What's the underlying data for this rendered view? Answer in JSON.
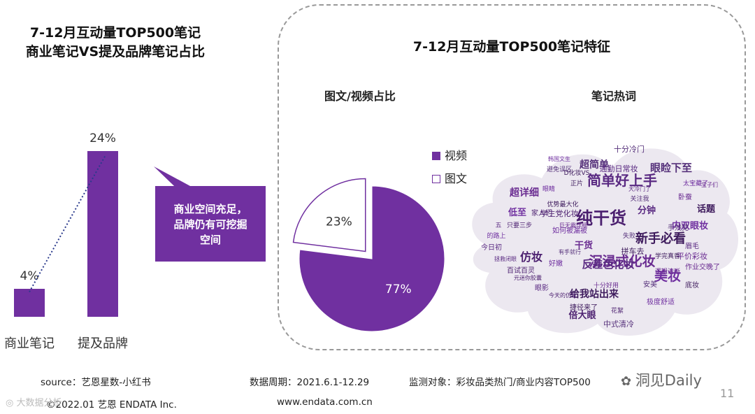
{
  "left_title_line1": "7-12月互动量TOP500笔记",
  "left_title_line2": "商业笔记VS提及品牌笔记占比",
  "callout_line1": "商业空间充足，",
  "callout_line2": "品牌仍有可挖掘",
  "callout_line3": "空间",
  "panel_title": "7-12月互动量TOP500笔记特征",
  "pie_title": "图文/视频占比",
  "cloud_title": "笔记热词",
  "footer": {
    "source": "source：艺恩星数-小红书",
    "period": "数据周期：2021.6.1-12.29",
    "target": "监测对象：彩妆品类热门/商业内容TOP500",
    "copyright": "©2022.01 艺恩 ENDATA Inc.",
    "website": "www.endata.com.cn",
    "page_number": "11",
    "brand_watermark": "洞见Daily",
    "corner_watermark": "大数据分析"
  },
  "colors": {
    "purple": "#7030a0",
    "white": "#ffffff"
  },
  "chart_data": [
    {
      "type": "bar",
      "categories": [
        "商业笔记",
        "提及品牌"
      ],
      "values": [
        4,
        24
      ],
      "value_labels": [
        "4%",
        "24%"
      ],
      "unit": "%",
      "trendline": "dotted",
      "ylim": [
        0,
        25
      ]
    },
    {
      "type": "pie",
      "labels": [
        "视频",
        "图文"
      ],
      "values": [
        77,
        23
      ],
      "value_labels": [
        "77%",
        "23%"
      ],
      "exploded": "图文"
    }
  ],
  "word_cloud": [
    {
      "text": "纯干货",
      "size": 24
    },
    {
      "text": "简单好上手",
      "size": 20
    },
    {
      "text": "沉浸式化妆",
      "size": 19
    },
    {
      "text": "新手必看",
      "size": 18
    },
    {
      "text": "美妆",
      "size": 19
    },
    {
      "text": "眼睑下至",
      "size": 15
    },
    {
      "text": "仿妆",
      "size": 16
    },
    {
      "text": "反差色化妆",
      "size": 15
    },
    {
      "text": "超详细",
      "size": 14
    },
    {
      "text": "给我站出来",
      "size": 14
    },
    {
      "text": "内双眼妆",
      "size": 13
    },
    {
      "text": "超简单",
      "size": 14
    },
    {
      "text": "倍大眼",
      "size": 13
    },
    {
      "text": "分钟",
      "size": 13
    },
    {
      "text": "干货",
      "size": 13
    },
    {
      "text": "话题",
      "size": 13
    },
    {
      "text": "低至",
      "size": 13
    },
    {
      "text": "十分冷门",
      "size": 11
    },
    {
      "text": "学生党化妆",
      "size": 11
    },
    {
      "text": "通勤日常妆",
      "size": 11
    },
    {
      "text": "平价彩妆",
      "size": 11
    },
    {
      "text": "拼车去",
      "size": 11
    },
    {
      "text": "如何被漏被",
      "size": 10
    },
    {
      "text": "中式清冷",
      "size": 11
    },
    {
      "text": "百试百灵",
      "size": 10
    },
    {
      "text": "今日初",
      "size": 10
    },
    {
      "text": "作业交晚了",
      "size": 10
    },
    {
      "text": "捷径来了",
      "size": 10
    },
    {
      "text": "极度舒适",
      "size": 10
    },
    {
      "text": "手残党",
      "size": 10
    },
    {
      "text": "家人们",
      "size": 10
    },
    {
      "text": "眼影",
      "size": 10
    },
    {
      "text": "卧蚕",
      "size": 10
    },
    {
      "text": "底妆",
      "size": 10
    },
    {
      "text": "好嫩",
      "size": 10
    },
    {
      "text": "安美",
      "size": 10
    },
    {
      "text": "花絮",
      "size": 9
    },
    {
      "text": "眉毛",
      "size": 10
    },
    {
      "text": "逻辑清晰",
      "size": 9
    },
    {
      "text": "学完真香",
      "size": 9
    },
    {
      "text": "太宝藏了",
      "size": 9
    },
    {
      "text": "避免误区",
      "size": 9
    },
    {
      "text": "只要三步",
      "size": 9
    },
    {
      "text": "五",
      "size": 9
    },
    {
      "text": "十分好用",
      "size": 9
    },
    {
      "text": "优势最大化",
      "size": 9
    },
    {
      "text": "的路上",
      "size": 9
    },
    {
      "text": "关注我",
      "size": 9
    },
    {
      "text": "今天的仿妆",
      "size": 8
    },
    {
      "text": "大冷门了",
      "size": 8
    },
    {
      "text": "宝子们",
      "size": 8
    },
    {
      "text": "正片",
      "size": 9
    },
    {
      "text": "眼睛",
      "size": 9
    },
    {
      "text": "有手就行",
      "size": 8
    },
    {
      "text": "元迷你胶囊",
      "size": 8
    },
    {
      "text": "拯救闭眼",
      "size": 8
    },
    {
      "text": "巨无霸详细",
      "size": 8
    },
    {
      "text": "D化妆VS",
      "size": 9
    },
    {
      "text": "韩国文生",
      "size": 8
    },
    {
      "text": "失败",
      "size": 9
    }
  ]
}
